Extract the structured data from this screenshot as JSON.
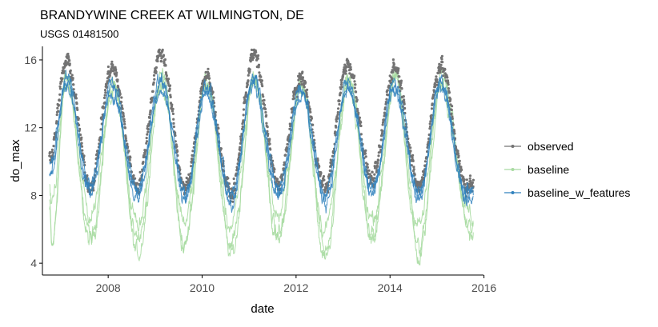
{
  "chart_data": {
    "type": "line",
    "title": "BRANDYWINE CREEK AT WILMINGTON, DE",
    "subtitle": "USGS 01481500",
    "xlabel": "date",
    "ylabel": "do_max",
    "x_range": [
      "2006-08-01",
      "2015-12-31"
    ],
    "xlim": [
      2006.6,
      2015.99
    ],
    "ylim": [
      3.3,
      16.8
    ],
    "x_ticks": [
      2008,
      2010,
      2012,
      2014,
      2016
    ],
    "x_tick_labels": [
      "2008",
      "2010",
      "2012",
      "2014",
      "2016"
    ],
    "y_ticks": [
      4,
      8,
      12,
      16
    ],
    "y_tick_labels": [
      "4",
      "8",
      "12",
      "16"
    ],
    "grid": false,
    "legend_position": "right",
    "series": [
      {
        "name": "observed",
        "color": "#737373",
        "marker": "point",
        "coverage_years": [
          2006.75,
          2015.78
        ],
        "seasonal_peaks": [
          {
            "x": 2007.12,
            "y": 15.9
          },
          {
            "x": 2008.08,
            "y": 15.5
          },
          {
            "x": 2009.12,
            "y": 16.4
          },
          {
            "x": 2010.08,
            "y": 15.0
          },
          {
            "x": 2011.1,
            "y": 16.3
          },
          {
            "x": 2012.1,
            "y": 14.9
          },
          {
            "x": 2013.1,
            "y": 15.8
          },
          {
            "x": 2014.1,
            "y": 15.6
          },
          {
            "x": 2015.08,
            "y": 15.7
          }
        ],
        "seasonal_troughs": [
          {
            "x": 2007.62,
            "y": 8.6
          },
          {
            "x": 2008.62,
            "y": 8.6
          },
          {
            "x": 2009.65,
            "y": 8.4
          },
          {
            "x": 2010.62,
            "y": 8.1
          },
          {
            "x": 2011.62,
            "y": 8.7
          },
          {
            "x": 2012.62,
            "y": 8.5
          },
          {
            "x": 2013.62,
            "y": 8.9
          },
          {
            "x": 2014.62,
            "y": 8.5
          },
          {
            "x": 2015.62,
            "y": 8.6
          }
        ]
      },
      {
        "name": "baseline",
        "color": "#a9dba2",
        "marker": "line",
        "coverage_years": [
          2006.75,
          2015.78
        ],
        "seasonal_peaks": [
          {
            "x": 2007.1,
            "y": 15.0
          },
          {
            "x": 2008.12,
            "y": 14.6
          },
          {
            "x": 2009.15,
            "y": 14.9
          },
          {
            "x": 2010.1,
            "y": 14.9
          },
          {
            "x": 2011.12,
            "y": 15.0
          },
          {
            "x": 2012.12,
            "y": 14.7
          },
          {
            "x": 2013.12,
            "y": 14.8
          },
          {
            "x": 2014.12,
            "y": 15.0
          },
          {
            "x": 2015.12,
            "y": 15.2
          }
        ],
        "seasonal_troughs": [
          {
            "x": 2006.8,
            "y": 4.5
          },
          {
            "x": 2007.62,
            "y": 5.0
          },
          {
            "x": 2008.62,
            "y": 4.3
          },
          {
            "x": 2009.62,
            "y": 4.8
          },
          {
            "x": 2010.62,
            "y": 4.2
          },
          {
            "x": 2011.62,
            "y": 5.0
          },
          {
            "x": 2012.62,
            "y": 3.9
          },
          {
            "x": 2013.62,
            "y": 4.8
          },
          {
            "x": 2014.62,
            "y": 4.1
          },
          {
            "x": 2015.72,
            "y": 5.6
          }
        ]
      },
      {
        "name": "baseline_w_features",
        "color": "#3182bd",
        "marker": "line",
        "coverage_years": [
          2006.75,
          2015.78
        ],
        "seasonal_peaks": [
          {
            "x": 2007.12,
            "y": 14.7
          },
          {
            "x": 2008.08,
            "y": 14.4
          },
          {
            "x": 2009.12,
            "y": 14.6
          },
          {
            "x": 2010.08,
            "y": 14.4
          },
          {
            "x": 2011.1,
            "y": 14.8
          },
          {
            "x": 2012.1,
            "y": 14.2
          },
          {
            "x": 2013.1,
            "y": 14.5
          },
          {
            "x": 2014.1,
            "y": 14.4
          },
          {
            "x": 2015.08,
            "y": 14.6
          }
        ],
        "seasonal_troughs": [
          {
            "x": 2007.62,
            "y": 8.3
          },
          {
            "x": 2008.62,
            "y": 8.1
          },
          {
            "x": 2009.65,
            "y": 8.0
          },
          {
            "x": 2010.62,
            "y": 7.8
          },
          {
            "x": 2011.62,
            "y": 8.2
          },
          {
            "x": 2012.62,
            "y": 7.9
          },
          {
            "x": 2013.62,
            "y": 8.3
          },
          {
            "x": 2014.62,
            "y": 8.0
          },
          {
            "x": 2015.62,
            "y": 8.1
          }
        ]
      }
    ]
  }
}
